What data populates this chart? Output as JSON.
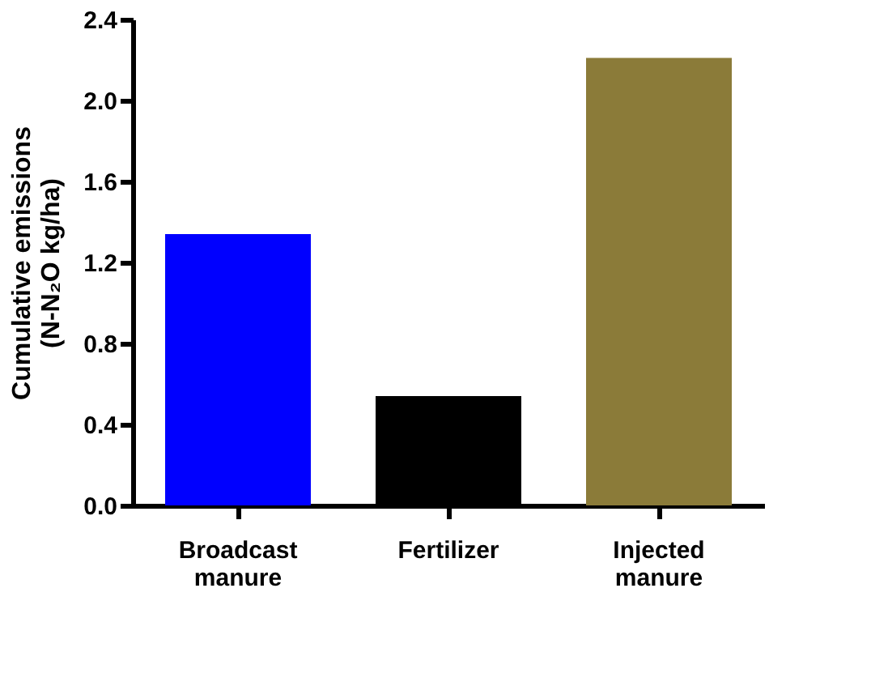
{
  "chart_data": {
    "type": "bar",
    "ylabel": "Cumulative emissions (N-N₂O kg/ha)",
    "categories": [
      "Broadcast manure",
      "Fertilizer",
      "Injected manure"
    ],
    "values": [
      1.34,
      0.54,
      2.21
    ],
    "colors": [
      "#0000ff",
      "#000000",
      "#8b7b39"
    ],
    "ylim": [
      0,
      2.4
    ],
    "yticks": [
      {
        "value": 0,
        "label": "0.0"
      },
      0.4,
      0.8,
      1.2,
      1.6,
      {
        "value": 2,
        "label": "2.0"
      },
      2.4
    ],
    "grid": false
  }
}
